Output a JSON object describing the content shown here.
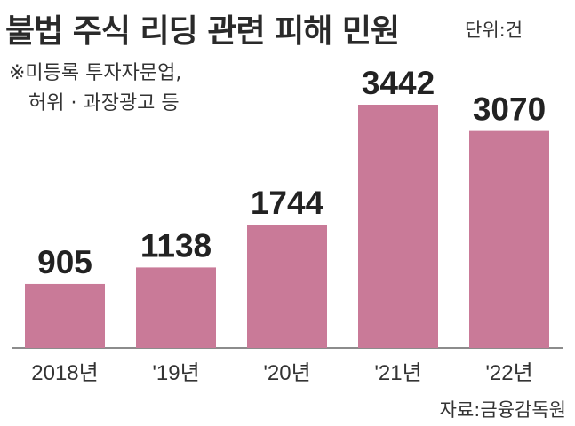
{
  "title": "불법 주식 리딩 관련 피해 민원",
  "unit_label": "단위:건",
  "note": [
    "※미등록 투자자문업,",
    "허위 · 과장광고 등"
  ],
  "source": "자료:금융감독원",
  "colors": {
    "bar": "#c97a98",
    "axis": "#666666",
    "text": "#222222"
  },
  "chart_data": {
    "type": "bar",
    "title": "불법 주식 리딩 관련 피해 민원",
    "unit": "단위:건",
    "categories": [
      "2018년",
      "'19년",
      "'20년",
      "'21년",
      "'22년"
    ],
    "values": [
      905,
      1138,
      1744,
      3442,
      3070
    ],
    "ylim": [
      0,
      3442
    ],
    "grid": false,
    "legend": "none"
  }
}
